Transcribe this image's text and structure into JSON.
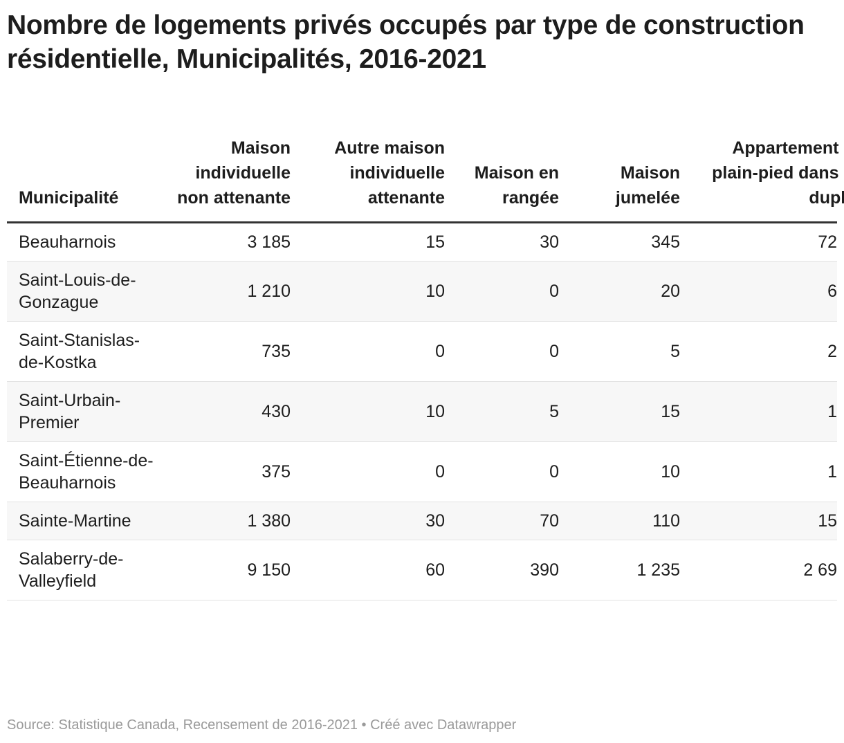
{
  "title": "Nombre de logements privés occupés par type de construction résidentielle, Municipalités, 2016-2021",
  "table": {
    "columns": [
      "Municipalité",
      "Maison individuelle non attenante",
      "Autre maison individuelle attenante",
      "Maison en rangée",
      "Maison jumelée",
      "Appartement ou plain-pied dans un duplex"
    ],
    "rows": [
      [
        "Beauharnois",
        "3 185",
        "15",
        "30",
        "345",
        "72"
      ],
      [
        "Saint-Louis-de-Gonzague",
        "1 210",
        "10",
        "0",
        "20",
        "6"
      ],
      [
        "Saint-Stanislas-de-Kostka",
        "735",
        "0",
        "0",
        "5",
        "2"
      ],
      [
        "Saint-Urbain-Premier",
        "430",
        "10",
        "5",
        "15",
        "1"
      ],
      [
        "Saint-Étienne-de-Beauharnois",
        "375",
        "0",
        "0",
        "10",
        "1"
      ],
      [
        "Sainte-Martine",
        "1 380",
        "30",
        "70",
        "110",
        "15"
      ],
      [
        "Salaberry-de-Valleyfield",
        "9 150",
        "60",
        "390",
        "1 235",
        "2 69"
      ]
    ]
  },
  "source": "Source: Statistique Canada, Recensement de 2016-2021 • Créé avec Datawrapper"
}
